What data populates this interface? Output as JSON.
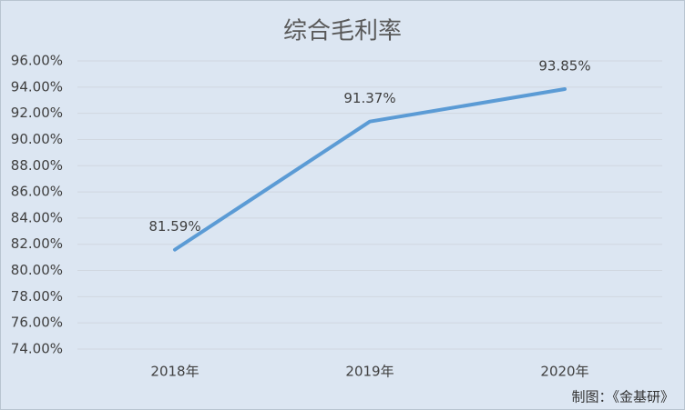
{
  "chart_data": {
    "type": "line",
    "title": "综合毛利率",
    "categories": [
      "2018年",
      "2019年",
      "2020年"
    ],
    "series": [
      {
        "name": "综合毛利率",
        "color": "#5b9bd5",
        "values": [
          81.59,
          91.37,
          93.85
        ],
        "value_labels": [
          "81.59%",
          "91.37%",
          "93.85%"
        ]
      }
    ],
    "ylim": [
      74,
      96
    ],
    "yticks": [
      {
        "value": 74,
        "label": "74.00%"
      },
      {
        "value": 76,
        "label": "76.00%"
      },
      {
        "value": 78,
        "label": "78.00%"
      },
      {
        "value": 80,
        "label": "80.00%"
      },
      {
        "value": 82,
        "label": "82.00%"
      },
      {
        "value": 84,
        "label": "84.00%"
      },
      {
        "value": 86,
        "label": "86.00%"
      },
      {
        "value": 88,
        "label": "88.00%"
      },
      {
        "value": 90,
        "label": "90.00%"
      },
      {
        "value": 92,
        "label": "92.00%"
      },
      {
        "value": 94,
        "label": "94.00%"
      },
      {
        "value": 96,
        "label": "96.00%"
      }
    ],
    "grid": true,
    "annotation": "制图：《金基研》"
  }
}
